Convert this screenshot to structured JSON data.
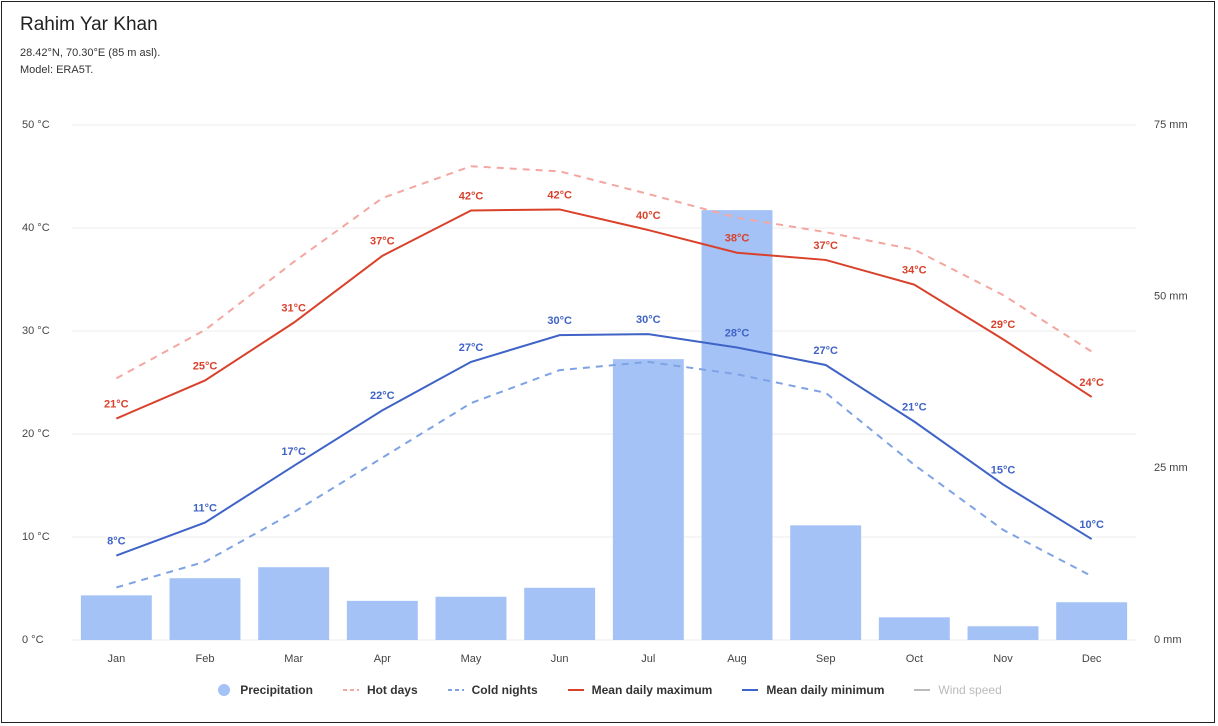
{
  "chart_data": {
    "type": "combo",
    "title": "Rahim Yar Khan",
    "subtitle": "28.42°N, 70.30°E (85 m asl).",
    "model": "Model: ERA5T.",
    "categories": [
      "Jan",
      "Feb",
      "Mar",
      "Apr",
      "May",
      "Jun",
      "Jul",
      "Aug",
      "Sep",
      "Oct",
      "Nov",
      "Dec"
    ],
    "ylim": [
      0,
      50
    ],
    "yticks": [
      {
        "value": 0,
        "label": "0 °C"
      },
      {
        "value": 10,
        "label": "10 °C"
      },
      {
        "value": 20,
        "label": "20 °C"
      },
      {
        "value": 30,
        "label": "30 °C"
      },
      {
        "value": 40,
        "label": "40 °C"
      },
      {
        "value": 50,
        "label": "50 °C"
      }
    ],
    "y2lim": [
      0,
      75
    ],
    "y2ticks": [
      {
        "value": 0,
        "label": "0 mm"
      },
      {
        "value": 25,
        "label": "25 mm"
      },
      {
        "value": 50,
        "label": "50 mm"
      },
      {
        "value": 75,
        "label": "75 mm"
      }
    ],
    "grid": true,
    "series": [
      {
        "name": "Precipitation",
        "type": "bar",
        "axis": "y2",
        "color": "#a4c2f6",
        "values": [
          6.5,
          9.0,
          10.6,
          5.7,
          6.3,
          7.6,
          40.9,
          62.6,
          16.7,
          3.3,
          2.0,
          5.5
        ]
      },
      {
        "name": "Hot days",
        "type": "line",
        "dash": true,
        "color": "#f4a6a0",
        "values": [
          25.4,
          30.1,
          36.7,
          42.9,
          46.0,
          45.5,
          43.3,
          41.0,
          39.6,
          37.9,
          33.5,
          28.0
        ]
      },
      {
        "name": "Cold nights",
        "type": "line",
        "dash": true,
        "color": "#7ea3e4",
        "values": [
          5.1,
          7.6,
          12.4,
          17.7,
          23.0,
          26.2,
          27.0,
          25.8,
          24.0,
          17.0,
          10.7,
          6.2
        ]
      },
      {
        "name": "Mean daily maximum",
        "type": "line",
        "color": "#d9412b",
        "values": [
          21.5,
          25.2,
          30.8,
          37.3,
          41.7,
          41.8,
          39.8,
          37.6,
          36.9,
          34.5,
          29.2,
          23.6
        ],
        "value_labels": [
          "21°C",
          "25°C",
          "31°C",
          "37°C",
          "42°C",
          "42°C",
          "40°C",
          "38°C",
          "37°C",
          "34°C",
          "29°C",
          "24°C"
        ]
      },
      {
        "name": "Mean daily minimum",
        "type": "line",
        "color": "#3f63c6",
        "values": [
          8.2,
          11.4,
          16.9,
          22.3,
          27.0,
          29.6,
          29.7,
          28.4,
          26.7,
          21.2,
          15.1,
          9.8
        ],
        "value_labels": [
          "8°C",
          "11°C",
          "17°C",
          "22°C",
          "27°C",
          "30°C",
          "30°C",
          "28°C",
          "27°C",
          "21°C",
          "15°C",
          "10°C"
        ]
      },
      {
        "name": "Wind speed",
        "type": "line",
        "color": "#bbbbbb",
        "visible": false
      }
    ]
  }
}
